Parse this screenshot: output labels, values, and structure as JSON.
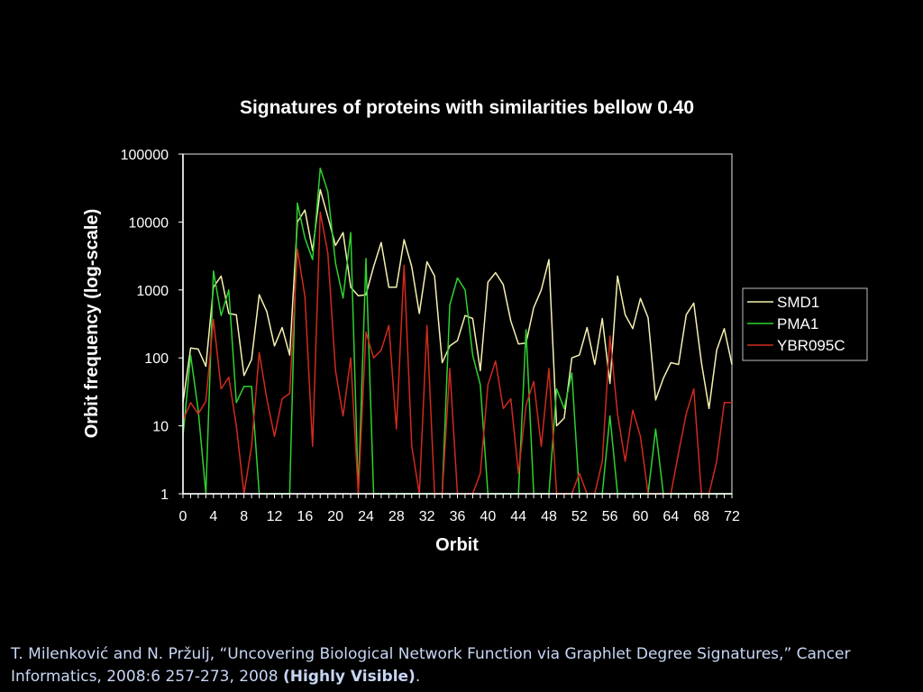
{
  "chart_data": {
    "type": "line",
    "title": "Signatures of proteins with similarities bellow 0.40",
    "xlabel": "Orbit",
    "ylabel": "Orbit frequency (log-scale)",
    "y_scale": "log",
    "xlim": [
      0,
      72
    ],
    "ylim": [
      1,
      100000
    ],
    "x_ticks": [
      0,
      4,
      8,
      12,
      16,
      20,
      24,
      28,
      32,
      36,
      40,
      44,
      48,
      52,
      56,
      60,
      64,
      68,
      72
    ],
    "y_ticks": [
      1,
      10,
      100,
      1000,
      10000,
      100000
    ],
    "y_tick_labels": [
      "1",
      "10",
      "100",
      "1000",
      "10000",
      "100000"
    ],
    "grid": false,
    "legend_position": "right",
    "x": [
      0,
      1,
      2,
      3,
      4,
      5,
      6,
      7,
      8,
      9,
      10,
      11,
      12,
      13,
      14,
      15,
      16,
      17,
      18,
      19,
      20,
      21,
      22,
      23,
      24,
      25,
      26,
      27,
      28,
      29,
      30,
      31,
      32,
      33,
      34,
      35,
      36,
      37,
      38,
      39,
      40,
      41,
      42,
      43,
      44,
      45,
      46,
      47,
      48,
      49,
      50,
      51,
      52,
      53,
      54,
      55,
      56,
      57,
      58,
      59,
      60,
      61,
      62,
      63,
      64,
      65,
      66,
      67,
      68,
      69,
      70,
      71,
      72
    ],
    "series": [
      {
        "name": "SMD1",
        "color": "#f5f0b0",
        "values": [
          22,
          140,
          135,
          75,
          1100,
          1600,
          450,
          430,
          55,
          95,
          850,
          480,
          150,
          280,
          110,
          10000,
          15000,
          3800,
          30000,
          12000,
          4500,
          7000,
          1100,
          820,
          850,
          2200,
          5000,
          1100,
          1100,
          5500,
          2200,
          450,
          2600,
          1600,
          85,
          150,
          180,
          420,
          380,
          65,
          1300,
          1800,
          1200,
          350,
          160,
          165,
          550,
          1000,
          2800,
          10,
          13,
          100,
          110,
          280,
          80,
          380,
          42,
          1600,
          430,
          270,
          750,
          390,
          24,
          50,
          85,
          80,
          430,
          640,
          85,
          18,
          130,
          270,
          80
        ]
      },
      {
        "name": "PMA1",
        "color": "#2fd12f",
        "values": [
          7,
          110,
          17,
          1,
          1900,
          420,
          1000,
          22,
          38,
          38,
          1,
          1,
          1,
          1,
          1,
          19000,
          5800,
          2800,
          62000,
          28000,
          2500,
          760,
          7000,
          1,
          2900,
          1,
          1,
          1,
          1,
          1,
          1,
          1,
          1,
          1,
          1,
          600,
          1500,
          1000,
          110,
          40,
          1,
          1,
          1,
          1,
          1,
          260,
          1,
          1,
          1,
          35,
          18,
          60,
          1,
          1,
          1,
          1,
          14,
          1,
          1,
          1,
          1,
          1,
          9,
          1,
          1,
          1,
          1,
          1,
          1,
          1,
          1,
          1,
          1
        ]
      },
      {
        "name": "YBR095C",
        "color": "#d02a1f",
        "values": [
          12,
          22,
          15,
          23,
          370,
          35,
          52,
          10,
          1,
          5,
          120,
          25,
          7,
          25,
          30,
          4000,
          800,
          5,
          14000,
          3500,
          65,
          14,
          100,
          1,
          240,
          100,
          130,
          300,
          9,
          2300,
          5,
          1,
          300,
          1,
          1,
          70,
          1,
          1,
          1,
          2,
          40,
          90,
          18,
          25,
          2,
          20,
          45,
          5,
          70,
          1,
          1,
          1,
          2,
          1,
          1,
          3,
          210,
          15,
          3,
          17,
          7,
          1,
          1,
          1,
          1,
          4,
          15,
          35,
          1,
          1,
          3,
          22,
          22
        ]
      }
    ]
  },
  "caption": {
    "text": "T. Milenković and N. Pržulj, “Uncovering Biological Network Function via Graphlet Degree Signatures,” Cancer Informatics, 2008:6 257-273, 2008 ",
    "highlight": "(Highly Visible)",
    "end": "."
  }
}
